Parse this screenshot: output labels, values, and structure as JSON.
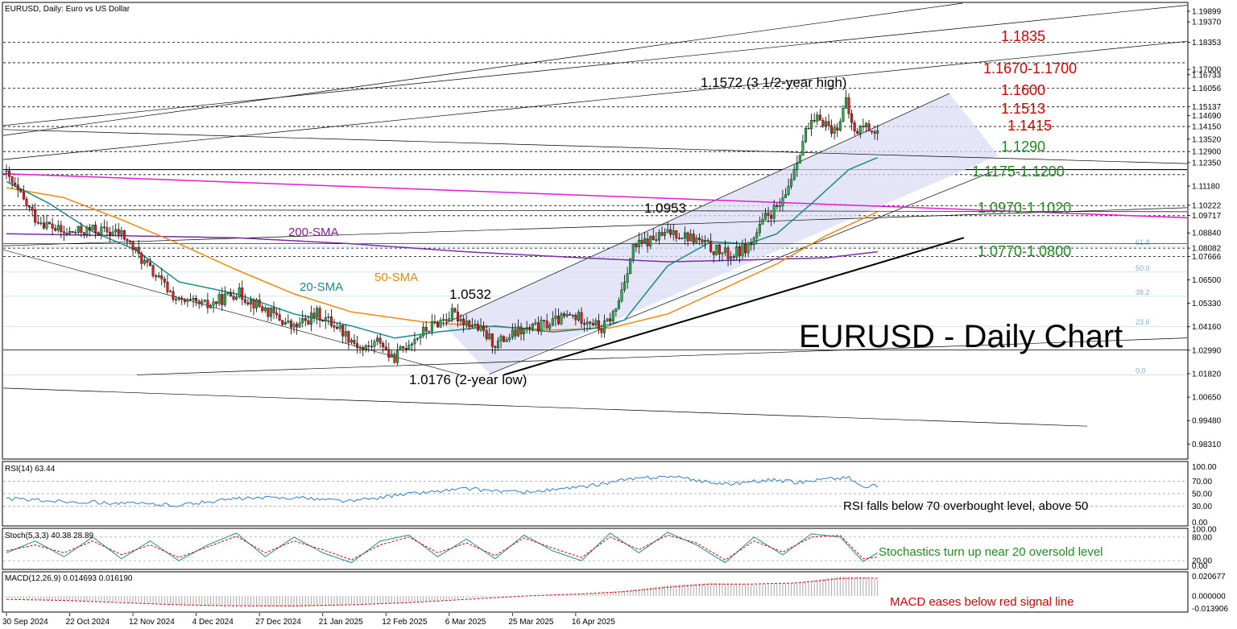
{
  "chart_title": "EURUSD, Daily:  Euro vs US Dollar",
  "main_title": "EURUSD - Daily Chart",
  "chart_data": {
    "type": "candlestick",
    "symbol": "EURUSD",
    "timeframe": "Daily",
    "y_range": [
      0.976,
      1.203
    ],
    "price_ticks": [
      "1.19899",
      "1.19370",
      "1.18353",
      "1.17000",
      "1.16733",
      "1.16056",
      "1.15137",
      "1.14690",
      "1.14150",
      "1.13520",
      "1.12900",
      "1.12350",
      "1.11180",
      "1.10222",
      "1.09717",
      "1.08840",
      "1.08082",
      "1.07666",
      "1.06500",
      "1.05330",
      "1.04160",
      "1.02990",
      "1.01820",
      "1.00650",
      "0.99480",
      "0.98310"
    ],
    "date_labels": [
      "30 Sep 2024",
      "22 Oct 2024",
      "12 Nov 2024",
      "4 Dec 2024",
      "27 Dec 2024",
      "21 Jan 2025",
      "12 Feb 2025",
      "6 Mar 2025",
      "25 Mar 2025",
      "16 Apr 2025"
    ],
    "close_anchors": [
      [
        0,
        1.117
      ],
      [
        10,
        1.096
      ],
      [
        20,
        1.088
      ],
      [
        30,
        1.09
      ],
      [
        40,
        1.088
      ],
      [
        50,
        1.07
      ],
      [
        60,
        1.054
      ],
      [
        70,
        1.052
      ],
      [
        80,
        1.059
      ],
      [
        90,
        1.05
      ],
      [
        100,
        1.041
      ],
      [
        108,
        1.048
      ],
      [
        115,
        1.042
      ],
      [
        124,
        1.03
      ],
      [
        130,
        1.035
      ],
      [
        134,
        1.025
      ],
      [
        140,
        1.034
      ],
      [
        148,
        1.042
      ],
      [
        155,
        1.048
      ],
      [
        163,
        1.042
      ],
      [
        170,
        1.033
      ],
      [
        178,
        1.039
      ],
      [
        186,
        1.042
      ],
      [
        196,
        1.047
      ],
      [
        203,
        1.045
      ],
      [
        207,
        1.04
      ],
      [
        212,
        1.05
      ],
      [
        218,
        1.081
      ],
      [
        226,
        1.086
      ],
      [
        232,
        1.089
      ],
      [
        240,
        1.085
      ],
      [
        246,
        1.08
      ],
      [
        252,
        1.077
      ],
      [
        259,
        1.083
      ],
      [
        264,
        1.096
      ],
      [
        270,
        1.103
      ],
      [
        278,
        1.139
      ],
      [
        283,
        1.146
      ],
      [
        288,
        1.139
      ],
      [
        292,
        1.153
      ],
      [
        295,
        1.138
      ],
      [
        298,
        1.142
      ],
      [
        303,
        1.139
      ]
    ],
    "sma_labels": {
      "sma20": "20-SMA",
      "sma50": "50-SMA",
      "sma200": "200-SMA"
    },
    "sma20_anchors": [
      [
        0,
        1.114
      ],
      [
        15,
        1.103
      ],
      [
        30,
        1.089
      ],
      [
        45,
        1.08
      ],
      [
        60,
        1.064
      ],
      [
        80,
        1.058
      ],
      [
        100,
        1.048
      ],
      [
        120,
        1.042
      ],
      [
        135,
        1.036
      ],
      [
        150,
        1.039
      ],
      [
        170,
        1.042
      ],
      [
        190,
        1.039
      ],
      [
        205,
        1.041
      ],
      [
        215,
        1.045
      ],
      [
        230,
        1.072
      ],
      [
        245,
        1.084
      ],
      [
        258,
        1.083
      ],
      [
        268,
        1.088
      ],
      [
        280,
        1.103
      ],
      [
        293,
        1.12
      ],
      [
        303,
        1.126
      ]
    ],
    "sma50_anchors": [
      [
        0,
        1.111
      ],
      [
        20,
        1.106
      ],
      [
        40,
        1.095
      ],
      [
        60,
        1.083
      ],
      [
        80,
        1.07
      ],
      [
        100,
        1.058
      ],
      [
        120,
        1.049
      ],
      [
        145,
        1.044
      ],
      [
        165,
        1.042
      ],
      [
        190,
        1.04
      ],
      [
        210,
        1.041
      ],
      [
        230,
        1.048
      ],
      [
        250,
        1.061
      ],
      [
        268,
        1.073
      ],
      [
        285,
        1.087
      ],
      [
        303,
        1.099
      ]
    ],
    "sma200_anchors": [
      [
        0,
        1.088
      ],
      [
        40,
        1.087
      ],
      [
        80,
        1.086
      ],
      [
        120,
        1.083
      ],
      [
        160,
        1.079
      ],
      [
        200,
        1.076
      ],
      [
        230,
        1.074
      ],
      [
        260,
        1.075
      ],
      [
        285,
        1.076
      ],
      [
        303,
        1.079
      ]
    ],
    "horizontal_levels": [
      1.1835,
      1.1733,
      1.1606,
      1.1513,
      1.1415,
      1.129,
      1.12,
      1.1175,
      1.102,
      1.097,
      1.0808,
      1.0767
    ],
    "fib_levels": [
      {
        "label": "61.8",
        "value": 1.0816
      },
      {
        "label": "50.0",
        "value": 1.0689
      },
      {
        "label": "38.2",
        "value": 1.0568
      },
      {
        "label": "23.6",
        "value": 1.0418
      },
      {
        "label": "0.0",
        "value": 1.0176
      }
    ],
    "annotations": {
      "high": "1.1572 (3 1/2-year high)",
      "low": "1.0176 (2-year low)",
      "peak_1": "1.0953",
      "peak_2": "1.0532",
      "r1": "1.1835",
      "r2": "1.1670-1.1700",
      "r3": "1.1600",
      "r4": "1.1513",
      "r5": "1.1415",
      "s1": "1.1290",
      "s2": "1.1175-1.1200",
      "s3": "1.0970-1.1020",
      "s4": "1.0770-1.0800"
    },
    "rsi": {
      "title": "RSI(14) 63.44",
      "levels": [
        "100.00",
        "70.00",
        "50.00",
        "30.00",
        "0.00"
      ],
      "note": "RSI falls below 70 overbought level, above 50",
      "anchors": [
        [
          0,
          42
        ],
        [
          20,
          38
        ],
        [
          40,
          35
        ],
        [
          60,
          32
        ],
        [
          80,
          42
        ],
        [
          100,
          44
        ],
        [
          120,
          38
        ],
        [
          140,
          50
        ],
        [
          160,
          58
        ],
        [
          180,
          52
        ],
        [
          200,
          60
        ],
        [
          215,
          72
        ],
        [
          230,
          78
        ],
        [
          250,
          65
        ],
        [
          265,
          72
        ],
        [
          275,
          68
        ],
        [
          285,
          74
        ],
        [
          293,
          76
        ],
        [
          298,
          60
        ],
        [
          303,
          63
        ]
      ]
    },
    "stochastic": {
      "title": "Stoch(5,3,3) 40.38 28.89",
      "levels": [
        "100.00",
        "80.00",
        "20.00",
        "0.00"
      ],
      "note": "Stochastics turn up near 20 oversold level",
      "k_anchors": [
        [
          0,
          40
        ],
        [
          10,
          70
        ],
        [
          20,
          30
        ],
        [
          30,
          80
        ],
        [
          40,
          25
        ],
        [
          50,
          70
        ],
        [
          60,
          20
        ],
        [
          70,
          60
        ],
        [
          80,
          90
        ],
        [
          90,
          30
        ],
        [
          100,
          80
        ],
        [
          110,
          40
        ],
        [
          120,
          15
        ],
        [
          130,
          70
        ],
        [
          140,
          85
        ],
        [
          150,
          30
        ],
        [
          160,
          75
        ],
        [
          170,
          25
        ],
        [
          180,
          85
        ],
        [
          190,
          45
        ],
        [
          200,
          20
        ],
        [
          210,
          90
        ],
        [
          220,
          40
        ],
        [
          230,
          92
        ],
        [
          240,
          60
        ],
        [
          250,
          15
        ],
        [
          260,
          80
        ],
        [
          270,
          35
        ],
        [
          280,
          88
        ],
        [
          290,
          80
        ],
        [
          298,
          18
        ],
        [
          303,
          40
        ]
      ],
      "d_anchors": [
        [
          0,
          45
        ],
        [
          10,
          60
        ],
        [
          20,
          40
        ],
        [
          30,
          70
        ],
        [
          40,
          35
        ],
        [
          50,
          60
        ],
        [
          60,
          28
        ],
        [
          70,
          55
        ],
        [
          80,
          82
        ],
        [
          90,
          40
        ],
        [
          100,
          70
        ],
        [
          110,
          48
        ],
        [
          120,
          22
        ],
        [
          130,
          60
        ],
        [
          140,
          80
        ],
        [
          150,
          40
        ],
        [
          160,
          65
        ],
        [
          170,
          33
        ],
        [
          180,
          78
        ],
        [
          190,
          52
        ],
        [
          200,
          28
        ],
        [
          210,
          80
        ],
        [
          220,
          48
        ],
        [
          230,
          85
        ],
        [
          240,
          65
        ],
        [
          250,
          22
        ],
        [
          260,
          70
        ],
        [
          270,
          42
        ],
        [
          280,
          80
        ],
        [
          290,
          84
        ],
        [
          298,
          25
        ],
        [
          303,
          29
        ]
      ]
    },
    "macd": {
      "title": "MACD(12,26,9) 0.014693 0.016190",
      "levels": [
        "0.020677",
        "0.000000",
        "-0.013906"
      ],
      "note": "MACD eases below red signal line",
      "hist_anchors": [
        [
          0,
          -0.002
        ],
        [
          20,
          -0.004
        ],
        [
          40,
          -0.005
        ],
        [
          60,
          -0.008
        ],
        [
          80,
          -0.009
        ],
        [
          100,
          -0.01
        ],
        [
          120,
          -0.008
        ],
        [
          140,
          -0.006
        ],
        [
          160,
          -0.002
        ],
        [
          180,
          0.0
        ],
        [
          200,
          0.002
        ],
        [
          215,
          0.005
        ],
        [
          230,
          0.01
        ],
        [
          245,
          0.012
        ],
        [
          260,
          0.01
        ],
        [
          275,
          0.012
        ],
        [
          290,
          0.018
        ],
        [
          298,
          0.017
        ],
        [
          303,
          0.0147
        ]
      ],
      "signal_anchors": [
        [
          0,
          -0.003
        ],
        [
          20,
          -0.004
        ],
        [
          40,
          -0.006
        ],
        [
          60,
          -0.008
        ],
        [
          80,
          -0.009
        ],
        [
          100,
          -0.009
        ],
        [
          120,
          -0.008
        ],
        [
          140,
          -0.006
        ],
        [
          160,
          -0.003
        ],
        [
          180,
          0.0
        ],
        [
          200,
          0.002
        ],
        [
          215,
          0.004
        ],
        [
          230,
          0.008
        ],
        [
          245,
          0.011
        ],
        [
          260,
          0.011
        ],
        [
          275,
          0.012
        ],
        [
          290,
          0.016
        ],
        [
          298,
          0.0165
        ],
        [
          303,
          0.0162
        ]
      ]
    }
  }
}
